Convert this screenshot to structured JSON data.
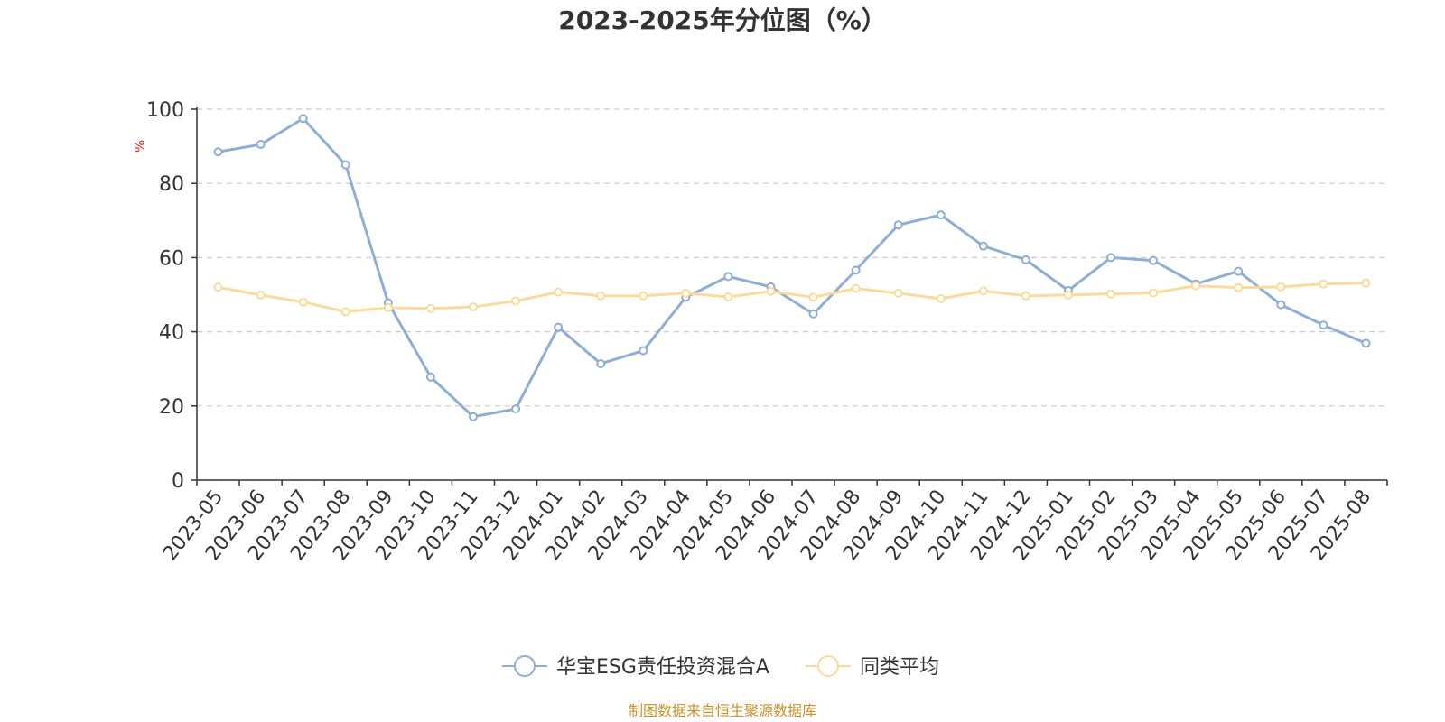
{
  "chart_data": {
    "type": "line",
    "title": "2023-2025年分位图（%）",
    "ylabel": "%",
    "xlabel": "",
    "ylim": [
      0,
      100
    ],
    "yticks": [
      0,
      20,
      40,
      60,
      80,
      100
    ],
    "grid": true,
    "legend_position": "bottom-center",
    "categories": [
      "2023-05",
      "2023-06",
      "2023-07",
      "2023-08",
      "2023-09",
      "2023-10",
      "2023-11",
      "2023-12",
      "2024-01",
      "2024-02",
      "2024-03",
      "2024-04",
      "2024-05",
      "2024-06",
      "2024-07",
      "2024-08",
      "2024-09",
      "2024-10",
      "2024-11",
      "2024-12",
      "2025-01",
      "2025-02",
      "2025-03",
      "2025-04",
      "2025-05",
      "2025-06",
      "2025-07",
      "2025-08"
    ],
    "series": [
      {
        "name": "华宝ESG责任投资混合A",
        "color": "#8eaed8",
        "values": [
          88.5,
          90.5,
          97.5,
          85.0,
          47.8,
          27.8,
          17.1,
          19.2,
          41.2,
          31.4,
          34.9,
          49.3,
          54.9,
          52.1,
          44.8,
          56.6,
          68.8,
          71.5,
          63.1,
          59.4,
          51.1,
          60.0,
          59.2,
          52.9,
          56.3,
          47.3,
          41.8,
          36.9
        ]
      },
      {
        "name": "同类平均",
        "color": "#fbdb9c",
        "values": [
          52.0,
          49.9,
          48.0,
          45.4,
          46.5,
          46.3,
          46.7,
          48.3,
          50.7,
          49.7,
          49.7,
          50.4,
          49.4,
          50.9,
          49.3,
          51.7,
          50.4,
          48.9,
          51.0,
          49.7,
          49.9,
          50.2,
          50.5,
          52.4,
          51.9,
          52.1,
          52.9,
          53.1
        ]
      }
    ]
  },
  "source_text": "制图数据来自恒生聚源数据库"
}
